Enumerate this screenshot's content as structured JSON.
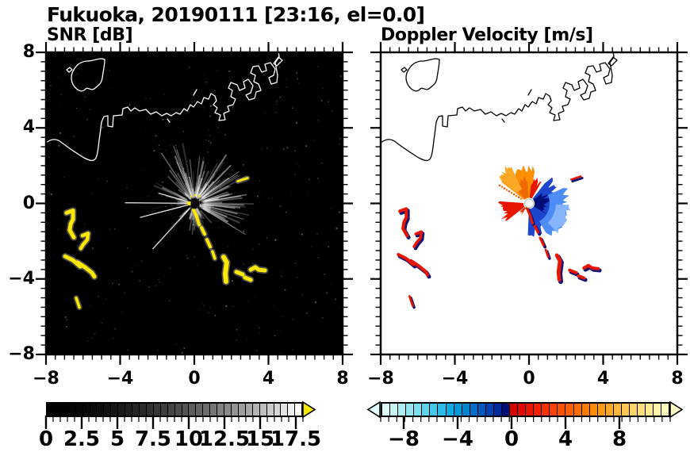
{
  "title": "Fukuoka, 20190111 [23:16, el=0.0]",
  "panels": {
    "snr": {
      "title": "SNR [dB]",
      "xtick_labels": [
        "−8",
        "−4",
        "0",
        "4",
        "8"
      ],
      "ytick_labels": [
        "8",
        "4",
        "0",
        "−4",
        "−8"
      ]
    },
    "velocity": {
      "title": "Doppler Velocity [m/s]",
      "xtick_labels": [
        "−8",
        "−4",
        "0",
        "4",
        "8"
      ],
      "ytick_labels": []
    }
  },
  "colorbars": {
    "snr": {
      "tick_labels": [
        "0",
        "2.5",
        "5",
        "7.5",
        "10",
        "12.5",
        "15",
        "17.5"
      ],
      "tick_values": [
        0,
        2.5,
        5,
        7.5,
        10,
        12.5,
        15,
        17.5
      ],
      "range": [
        0,
        18
      ],
      "arrow_color": "#f6ea00",
      "colors": [
        "#000000",
        "#000000",
        "#010101",
        "#030303",
        "#050505",
        "#080808",
        "#0b0b0b",
        "#0e0e0e",
        "#121212",
        "#161616",
        "#1a1a1a",
        "#1f1f1f",
        "#252525",
        "#2a2a2a",
        "#303030",
        "#373737",
        "#3d3d3d",
        "#454545",
        "#4c4c4c",
        "#545454",
        "#5c5c5c",
        "#646464",
        "#6d6d6d",
        "#767676",
        "#808080",
        "#898989",
        "#939393",
        "#9e9e9e",
        "#a8a8a8",
        "#b3b3b3",
        "#bfbfbf",
        "#cbcbcb",
        "#d7d7d7",
        "#e3e3e3",
        "#f0f0f0",
        "#fcfcfc"
      ]
    },
    "velocity": {
      "tick_labels": [
        "−8",
        "−4",
        "0",
        "4",
        "8"
      ],
      "tick_values": [
        -8,
        -4,
        0,
        4,
        8
      ],
      "range": [
        -9.7,
        11.9
      ],
      "left_arrow_color": "#dffbfa",
      "right_arrow_color": "#fff9c4",
      "colors": [
        "#dafaf8",
        "#c4f5f4",
        "#aceef2",
        "#93e6f0",
        "#7adeee",
        "#60d4ec",
        "#45c8ea",
        "#2abbe6",
        "#10abe0",
        "#0098d8",
        "#0084d0",
        "#006ec6",
        "#0057bc",
        "#0041b0",
        "#002ba0",
        "#000d74",
        "#d40000",
        "#e00800",
        "#ea1400",
        "#f22200",
        "#f83100",
        "#fc4000",
        "#ff4f00",
        "#ff5e00",
        "#ff6d00",
        "#ff7c00",
        "#ff8b08",
        "#ff9a18",
        "#ffa92b",
        "#ffb83e",
        "#ffc652",
        "#ffd366",
        "#ffdf7a",
        "#ffea8f",
        "#fff3a4",
        "#fffab9"
      ]
    }
  },
  "chart_data": {
    "type": "heatmap",
    "title": "Fukuoka, 20190111 [23:16, el=0.0]",
    "site": "Fukuoka",
    "date": "20190111",
    "time": "23:16",
    "elevation_deg": 0.0,
    "radar_center_km": [
      0,
      0
    ],
    "subplots": [
      {
        "title": "SNR [dB]",
        "xlim": [
          -8,
          8
        ],
        "ylim": [
          -8,
          8
        ],
        "xticks": [
          -8,
          -4,
          0,
          4,
          8
        ],
        "yticks": [
          -8,
          -4,
          0,
          4,
          8
        ],
        "background": "#000000",
        "coastline_color": "#ffffff",
        "colorbar_range": [
          0,
          18
        ],
        "colorbar_ticks": [
          0,
          2.5,
          5,
          7.5,
          10,
          12.5,
          15,
          17.5
        ],
        "notes": "black background = SNR below 0 dB; gray radial ground-clutter sunburst around radar; bright yellow arcs = strong echoes >= 18 dB"
      },
      {
        "title": "Doppler Velocity [m/s]",
        "xlim": [
          -8,
          8
        ],
        "ylim": [
          -8,
          8
        ],
        "xticks": [
          -8,
          -4,
          0,
          4,
          8
        ],
        "yticks": [
          -8,
          -4,
          0,
          4,
          8
        ],
        "background": "#ffffff",
        "coastline_color": "#000000",
        "colorbar_range": [
          -9.7,
          11.9
        ],
        "colorbar_ticks": [
          -8,
          -4,
          0,
          4,
          8
        ],
        "notes": "orange/red fan (positive, away) to N-NW and W of radar; blue/navy lobe (negative, toward) to E-SE; echo arcs mixed red/navy"
      }
    ],
    "echo_strokes": [
      {
        "pts": [
          [
            -0.04,
            -0.33
          ],
          [
            0.13,
            -0.71
          ],
          [
            0.26,
            -1.13
          ]
        ],
        "w": 4
      },
      {
        "pts": [
          [
            0.39,
            -1.29
          ],
          [
            0.56,
            -1.63
          ]
        ],
        "w": 4
      },
      {
        "pts": [
          [
            0.68,
            -1.92
          ],
          [
            0.86,
            -2.3
          ]
        ],
        "w": 4
      },
      {
        "pts": [
          [
            0.98,
            -2.55
          ],
          [
            1.11,
            -2.92
          ]
        ],
        "w": 3.5
      },
      {
        "pts": [
          [
            1.58,
            -2.84
          ],
          [
            1.75,
            -3.13
          ],
          [
            1.67,
            -3.72
          ],
          [
            1.71,
            -4.14
          ]
        ],
        "w": 6
      },
      {
        "pts": [
          [
            2.27,
            -3.63
          ],
          [
            2.61,
            -3.76
          ]
        ],
        "w": 5
      },
      {
        "pts": [
          [
            2.74,
            -3.93
          ],
          [
            3.04,
            -4.05
          ]
        ],
        "w": 5
      },
      {
        "pts": [
          [
            3.04,
            -3.51
          ],
          [
            3.29,
            -3.38
          ],
          [
            3.47,
            -3.51
          ],
          [
            3.81,
            -3.55
          ]
        ],
        "w": 5
      },
      {
        "pts": [
          [
            2.35,
            1.17
          ],
          [
            2.87,
            1.34
          ]
        ],
        "w": 3
      },
      {
        "pts": [
          [
            -6.89,
            -0.5
          ],
          [
            -6.54,
            -0.38
          ],
          [
            -6.54,
            -0.84
          ],
          [
            -6.67,
            -1.09
          ],
          [
            -6.72,
            -1.42
          ],
          [
            -6.5,
            -1.8
          ]
        ],
        "w": 5
      },
      {
        "pts": [
          [
            -6.03,
            -1.71
          ],
          [
            -5.73,
            -1.59
          ],
          [
            -5.77,
            -1.92
          ],
          [
            -5.99,
            -2.17
          ],
          [
            -6.12,
            -2.38
          ]
        ],
        "w": 4.5
      },
      {
        "pts": [
          [
            -6.97,
            -2.8
          ],
          [
            -6.54,
            -3.01
          ],
          [
            -6.16,
            -3.34
          ]
        ],
        "w": 5
      },
      {
        "pts": [
          [
            -6.29,
            -3.13
          ],
          [
            -5.9,
            -3.38
          ],
          [
            -5.52,
            -3.68
          ],
          [
            -5.39,
            -3.88
          ]
        ],
        "w": 5
      },
      {
        "pts": [
          [
            -6.37,
            -5.01
          ],
          [
            -6.2,
            -5.51
          ]
        ],
        "w": 3.5
      }
    ],
    "echo_color_snr": "#ffe800",
    "echo_colors_velocity": {
      "core": "#141478",
      "fringe": "#e81600"
    },
    "velocity_fans": [
      {
        "az": [
          -52,
          10
        ],
        "r0": 0.3,
        "rb": 1.5,
        "rv": 0.7,
        "color": "#ff8f00"
      },
      {
        "az": [
          -42,
          -4
        ],
        "r0": 0.3,
        "rb": 1.0,
        "rv": 0.5,
        "color": "#f06800"
      },
      {
        "az": [
          -50,
          -26
        ],
        "r0": 0.85,
        "rb": 1.95,
        "rv": 0.5,
        "color": "#ffa826"
      },
      {
        "az": [
          6,
          30
        ],
        "r0": 0.3,
        "rb": 0.95,
        "rv": 0.55,
        "color": "#e81600"
      },
      {
        "az": [
          38,
          182
        ],
        "r0": 0.3,
        "rb": 1.27,
        "rv": 0.6,
        "color": "#1d46cf"
      },
      {
        "az": [
          52,
          122
        ],
        "r0": 0.3,
        "rb": 0.76,
        "rv": 0.38,
        "color": "#000f78"
      },
      {
        "az": [
          66,
          150
        ],
        "r0": 1.1,
        "rb": 1.75,
        "rv": 0.48,
        "color": "#4e8cf5"
      },
      {
        "az": [
          92,
          136
        ],
        "r0": 1.44,
        "rb": 2.0,
        "rv": 0.32,
        "color": "#86b4ff"
      },
      {
        "az": [
          232,
          274
        ],
        "r0": 0.3,
        "rb": 1.19,
        "rv": 0.58,
        "color": "#e81600"
      },
      {
        "az": [
          213,
          229
        ],
        "r0": 0.3,
        "rb": 0.55,
        "rv": 0.25,
        "color": "#e83400"
      }
    ],
    "snr_clutter": {
      "sectors": [
        {
          "az": [
            -35,
            125
          ],
          "count": 95,
          "len_km": [
            0.9,
            3.3
          ],
          "alpha": [
            0.1,
            0.5
          ]
        },
        {
          "az": [
            125,
            200
          ],
          "count": 24,
          "len_km": [
            0.6,
            1.8
          ],
          "alpha": [
            0.06,
            0.28
          ]
        },
        {
          "az": [
            200,
            325
          ],
          "count": 48,
          "len_km": [
            0.8,
            2.8
          ],
          "alpha": [
            0.08,
            0.38
          ]
        }
      ],
      "dark_wedges_az": [
        [
          204,
          220
        ],
        [
          229,
          254
        ],
        [
          258,
          263
        ]
      ],
      "bright_rays": [
        {
          "az": 270.5,
          "len_km": 3.7
        },
        {
          "az": 222.4,
          "len_km": 3.3
        },
        {
          "az": 255.5,
          "len_km": 3.0
        },
        {
          "az": 286.0,
          "len_km": 2.0
        }
      ],
      "noise_speckles": 260
    }
  }
}
